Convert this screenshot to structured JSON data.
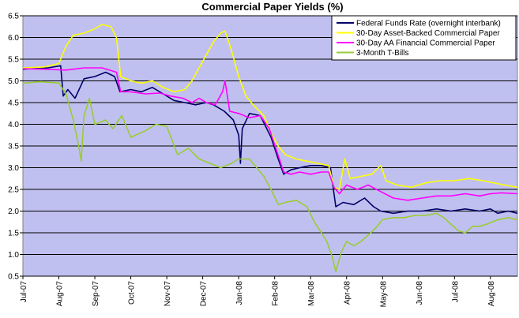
{
  "chart_data": {
    "type": "line",
    "title": "Commercial Paper Yields (%)",
    "xlabel": "",
    "ylabel": "",
    "ylim": [
      0.5,
      6.5
    ],
    "yticks": [
      "0.5",
      "1.0",
      "1.5",
      "2.0",
      "2.5",
      "3.0",
      "3.5",
      "4.0",
      "4.5",
      "5.0",
      "5.5",
      "6.0",
      "6.5"
    ],
    "x_tick_labels": [
      "Jul-07",
      "Aug-07",
      "Sep-07",
      "Oct-07",
      "Nov-07",
      "Dec-07",
      "Jan-08",
      "Feb-08",
      "Mar-08",
      "Apr-08",
      "May-08",
      "Jun-08",
      "Jul-08",
      "Aug-08"
    ],
    "x_range_months": [
      0,
      13.75
    ],
    "grid": "horizontal",
    "plot_background": "#c0c0f0",
    "legend_position": "top-right",
    "series": [
      {
        "name": "Federal Funds Rate (overnight interbank)",
        "color": "#000066",
        "points": [
          [
            0,
            5.27
          ],
          [
            0.7,
            5.3
          ],
          [
            1.05,
            5.35
          ],
          [
            1.12,
            4.65
          ],
          [
            1.25,
            4.8
          ],
          [
            1.45,
            4.6
          ],
          [
            1.7,
            5.05
          ],
          [
            2.0,
            5.1
          ],
          [
            2.3,
            5.2
          ],
          [
            2.55,
            5.1
          ],
          [
            2.7,
            4.75
          ],
          [
            3.0,
            4.8
          ],
          [
            3.3,
            4.75
          ],
          [
            3.6,
            4.85
          ],
          [
            3.9,
            4.7
          ],
          [
            4.2,
            4.55
          ],
          [
            4.5,
            4.5
          ],
          [
            4.8,
            4.45
          ],
          [
            5.1,
            4.5
          ],
          [
            5.3,
            4.45
          ],
          [
            5.6,
            4.3
          ],
          [
            5.85,
            4.1
          ],
          [
            6.0,
            3.75
          ],
          [
            6.05,
            3.1
          ],
          [
            6.1,
            3.9
          ],
          [
            6.3,
            4.25
          ],
          [
            6.6,
            4.2
          ],
          [
            6.9,
            3.7
          ],
          [
            7.1,
            3.2
          ],
          [
            7.25,
            2.85
          ],
          [
            7.45,
            2.95
          ],
          [
            7.7,
            3.0
          ],
          [
            8.0,
            3.05
          ],
          [
            8.3,
            3.05
          ],
          [
            8.55,
            3.0
          ],
          [
            8.65,
            2.4
          ],
          [
            8.7,
            2.1
          ],
          [
            8.9,
            2.2
          ],
          [
            9.2,
            2.15
          ],
          [
            9.5,
            2.3
          ],
          [
            9.75,
            2.1
          ],
          [
            9.95,
            2.0
          ],
          [
            10.3,
            1.95
          ],
          [
            10.7,
            2.0
          ],
          [
            11.1,
            2.0
          ],
          [
            11.5,
            2.05
          ],
          [
            11.9,
            2.0
          ],
          [
            12.3,
            2.05
          ],
          [
            12.7,
            2.0
          ],
          [
            13.0,
            2.05
          ],
          [
            13.2,
            1.95
          ],
          [
            13.5,
            2.0
          ],
          [
            13.75,
            1.95
          ]
        ]
      },
      {
        "name": "30-Day Asset-Backed Commercial Paper",
        "color": "#ffff00",
        "points": [
          [
            0,
            5.3
          ],
          [
            0.6,
            5.32
          ],
          [
            1.0,
            5.4
          ],
          [
            1.2,
            5.8
          ],
          [
            1.4,
            6.05
          ],
          [
            1.7,
            6.1
          ],
          [
            2.0,
            6.2
          ],
          [
            2.2,
            6.3
          ],
          [
            2.45,
            6.25
          ],
          [
            2.6,
            6.0
          ],
          [
            2.72,
            5.1
          ],
          [
            3.0,
            5.0
          ],
          [
            3.3,
            4.95
          ],
          [
            3.6,
            5.0
          ],
          [
            3.9,
            4.85
          ],
          [
            4.2,
            4.75
          ],
          [
            4.5,
            4.8
          ],
          [
            4.7,
            5.0
          ],
          [
            4.9,
            5.3
          ],
          [
            5.1,
            5.6
          ],
          [
            5.3,
            5.9
          ],
          [
            5.5,
            6.1
          ],
          [
            5.62,
            6.15
          ],
          [
            5.8,
            5.7
          ],
          [
            6.0,
            5.1
          ],
          [
            6.2,
            4.65
          ],
          [
            6.4,
            4.45
          ],
          [
            6.7,
            4.2
          ],
          [
            6.9,
            3.8
          ],
          [
            7.1,
            3.5
          ],
          [
            7.3,
            3.3
          ],
          [
            7.6,
            3.2
          ],
          [
            7.9,
            3.15
          ],
          [
            8.2,
            3.1
          ],
          [
            8.5,
            3.05
          ],
          [
            8.65,
            2.55
          ],
          [
            8.8,
            2.5
          ],
          [
            8.95,
            3.2
          ],
          [
            9.1,
            2.75
          ],
          [
            9.4,
            2.8
          ],
          [
            9.7,
            2.85
          ],
          [
            9.95,
            3.05
          ],
          [
            10.1,
            2.7
          ],
          [
            10.4,
            2.6
          ],
          [
            10.8,
            2.55
          ],
          [
            11.2,
            2.65
          ],
          [
            11.6,
            2.7
          ],
          [
            12.0,
            2.7
          ],
          [
            12.4,
            2.75
          ],
          [
            12.8,
            2.7
          ],
          [
            13.1,
            2.65
          ],
          [
            13.4,
            2.6
          ],
          [
            13.75,
            2.55
          ]
        ]
      },
      {
        "name": "30-Day AA Financial Commercial Paper",
        "color": "#ff00ff",
        "points": [
          [
            0,
            5.28
          ],
          [
            0.6,
            5.27
          ],
          [
            1.2,
            5.25
          ],
          [
            1.7,
            5.3
          ],
          [
            2.2,
            5.3
          ],
          [
            2.6,
            5.2
          ],
          [
            2.72,
            4.75
          ],
          [
            3.0,
            4.75
          ],
          [
            3.4,
            4.7
          ],
          [
            3.8,
            4.72
          ],
          [
            4.1,
            4.65
          ],
          [
            4.45,
            4.6
          ],
          [
            4.7,
            4.5
          ],
          [
            4.9,
            4.6
          ],
          [
            5.1,
            4.5
          ],
          [
            5.35,
            4.45
          ],
          [
            5.55,
            4.75
          ],
          [
            5.62,
            5.0
          ],
          [
            5.75,
            4.3
          ],
          [
            6.0,
            4.25
          ],
          [
            6.3,
            4.15
          ],
          [
            6.6,
            4.2
          ],
          [
            6.85,
            3.9
          ],
          [
            7.05,
            3.4
          ],
          [
            7.25,
            2.9
          ],
          [
            7.45,
            2.85
          ],
          [
            7.7,
            2.9
          ],
          [
            8.0,
            2.85
          ],
          [
            8.3,
            2.9
          ],
          [
            8.5,
            2.9
          ],
          [
            8.65,
            2.55
          ],
          [
            8.8,
            2.4
          ],
          [
            9.0,
            2.6
          ],
          [
            9.3,
            2.5
          ],
          [
            9.6,
            2.6
          ],
          [
            9.95,
            2.45
          ],
          [
            10.3,
            2.3
          ],
          [
            10.7,
            2.25
          ],
          [
            11.1,
            2.3
          ],
          [
            11.5,
            2.35
          ],
          [
            11.9,
            2.35
          ],
          [
            12.3,
            2.4
          ],
          [
            12.7,
            2.35
          ],
          [
            13.0,
            2.4
          ],
          [
            13.3,
            2.42
          ],
          [
            13.75,
            2.4
          ]
        ]
      },
      {
        "name": "3-Month T-Bills",
        "color": "#99cc33",
        "points": [
          [
            0,
            4.95
          ],
          [
            0.5,
            4.98
          ],
          [
            1.0,
            4.95
          ],
          [
            1.2,
            4.7
          ],
          [
            1.4,
            4.1
          ],
          [
            1.55,
            3.5
          ],
          [
            1.62,
            3.15
          ],
          [
            1.7,
            4.2
          ],
          [
            1.85,
            4.6
          ],
          [
            2.0,
            4.0
          ],
          [
            2.3,
            4.1
          ],
          [
            2.5,
            3.9
          ],
          [
            2.75,
            4.2
          ],
          [
            3.0,
            3.7
          ],
          [
            3.4,
            3.85
          ],
          [
            3.7,
            4.0
          ],
          [
            4.0,
            3.95
          ],
          [
            4.3,
            3.3
          ],
          [
            4.6,
            3.45
          ],
          [
            4.9,
            3.2
          ],
          [
            5.2,
            3.1
          ],
          [
            5.5,
            3.0
          ],
          [
            5.8,
            3.1
          ],
          [
            6.0,
            3.2
          ],
          [
            6.3,
            3.2
          ],
          [
            6.5,
            3.0
          ],
          [
            6.7,
            2.8
          ],
          [
            6.9,
            2.5
          ],
          [
            7.1,
            2.15
          ],
          [
            7.3,
            2.2
          ],
          [
            7.6,
            2.25
          ],
          [
            7.9,
            2.1
          ],
          [
            8.1,
            1.75
          ],
          [
            8.3,
            1.5
          ],
          [
            8.45,
            1.3
          ],
          [
            8.6,
            0.95
          ],
          [
            8.7,
            0.6
          ],
          [
            8.85,
            1.05
          ],
          [
            9.0,
            1.3
          ],
          [
            9.2,
            1.2
          ],
          [
            9.4,
            1.3
          ],
          [
            9.6,
            1.45
          ],
          [
            9.8,
            1.6
          ],
          [
            10.0,
            1.8
          ],
          [
            10.3,
            1.85
          ],
          [
            10.6,
            1.85
          ],
          [
            10.9,
            1.9
          ],
          [
            11.2,
            1.9
          ],
          [
            11.5,
            1.95
          ],
          [
            11.7,
            1.85
          ],
          [
            11.9,
            1.7
          ],
          [
            12.1,
            1.55
          ],
          [
            12.3,
            1.5
          ],
          [
            12.5,
            1.65
          ],
          [
            12.7,
            1.65
          ],
          [
            12.9,
            1.7
          ],
          [
            13.2,
            1.8
          ],
          [
            13.5,
            1.85
          ],
          [
            13.75,
            1.8
          ]
        ]
      }
    ]
  }
}
